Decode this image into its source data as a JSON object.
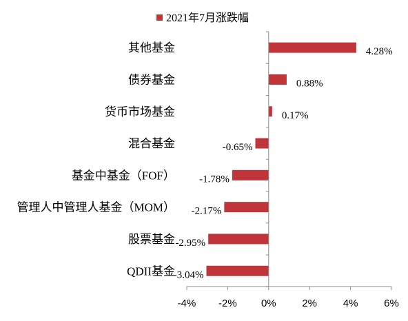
{
  "chart_data": {
    "type": "bar",
    "orientation": "horizontal",
    "categories": [
      "其他基金",
      "债券基金",
      "货币市场基金",
      "混合基金",
      "基金中基金（FOF）",
      "管理人中管理人基金（MOM）",
      "股票基金",
      "QDII基金"
    ],
    "series": [
      {
        "name": "2021年7月涨跌幅",
        "values": [
          4.28,
          0.88,
          0.17,
          -0.65,
          -1.78,
          -2.17,
          -2.95,
          -3.04
        ],
        "labels": [
          "4.28%",
          "0.88%",
          "0.17%",
          "-0.65%",
          "-1.78%",
          "-2.17%",
          "-2.95%",
          "-3.04%"
        ]
      }
    ],
    "xlim": [
      -4,
      6
    ],
    "xticks": [
      -4,
      -2,
      0,
      2,
      4,
      6
    ],
    "xtick_labels": [
      "-4%",
      "-2%",
      "0%",
      "2%",
      "4%",
      "6%"
    ],
    "grid": false,
    "legend_position": "top",
    "bar_color": "#C0353A"
  }
}
